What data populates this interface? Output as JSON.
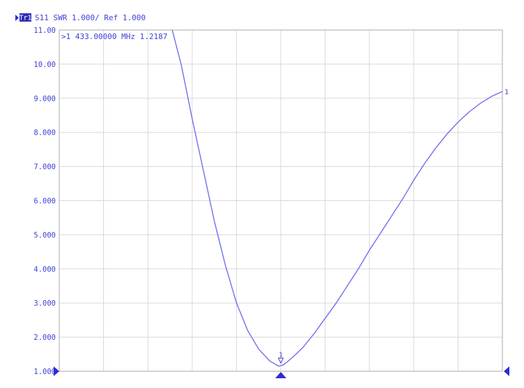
{
  "header": {
    "trace_badge": "Tr1",
    "label": "S11 SWR 1.000/ Ref 1.000"
  },
  "marker_readout": {
    "text": ">1  433.00000 MHz  1.2187"
  },
  "colors": {
    "trace": "#6f6ff0",
    "text": "#3f3fd8",
    "grid": "#d8d8d8",
    "frame": "#a8a8a8",
    "badge_bg": "#2f2fb8",
    "badge_text": "#ffffff",
    "marker_fill": "#2b2bd6",
    "background": "#ffffff"
  },
  "chart_data": {
    "type": "line",
    "title": "",
    "xlabel": "",
    "ylabel": "",
    "ylim": [
      1.0,
      11.0
    ],
    "x_divisions": 10,
    "grid": true,
    "ytick_labels": [
      "11.00",
      "10.00",
      "9.000",
      "8.000",
      "7.000",
      "6.000",
      "5.000",
      "4.000",
      "3.000",
      "2.000",
      "1.000"
    ],
    "series": [
      {
        "x": [
          2.55,
          2.75,
          3.0,
          3.25,
          3.5,
          3.75,
          4.0,
          4.25,
          4.5,
          4.75,
          4.95,
          5.05,
          5.15,
          5.3,
          5.5,
          5.75,
          6.0,
          6.25,
          6.5,
          6.75,
          7.0,
          7.25,
          7.5,
          7.75,
          8.0,
          8.25,
          8.5,
          8.75,
          9.0,
          9.25,
          9.5,
          9.75,
          10.0
        ],
        "values": [
          11.0,
          10.0,
          8.4,
          6.9,
          5.4,
          4.1,
          3.0,
          2.2,
          1.65,
          1.3,
          1.15,
          1.18,
          1.28,
          1.45,
          1.7,
          2.1,
          2.55,
          3.0,
          3.5,
          4.0,
          4.55,
          5.05,
          5.55,
          6.05,
          6.6,
          7.1,
          7.55,
          7.95,
          8.3,
          8.6,
          8.85,
          9.05,
          9.2
        ]
      }
    ],
    "markers": [
      {
        "id": "1",
        "x": 5.0,
        "value": 1.2187
      }
    ],
    "end_label": "1"
  }
}
